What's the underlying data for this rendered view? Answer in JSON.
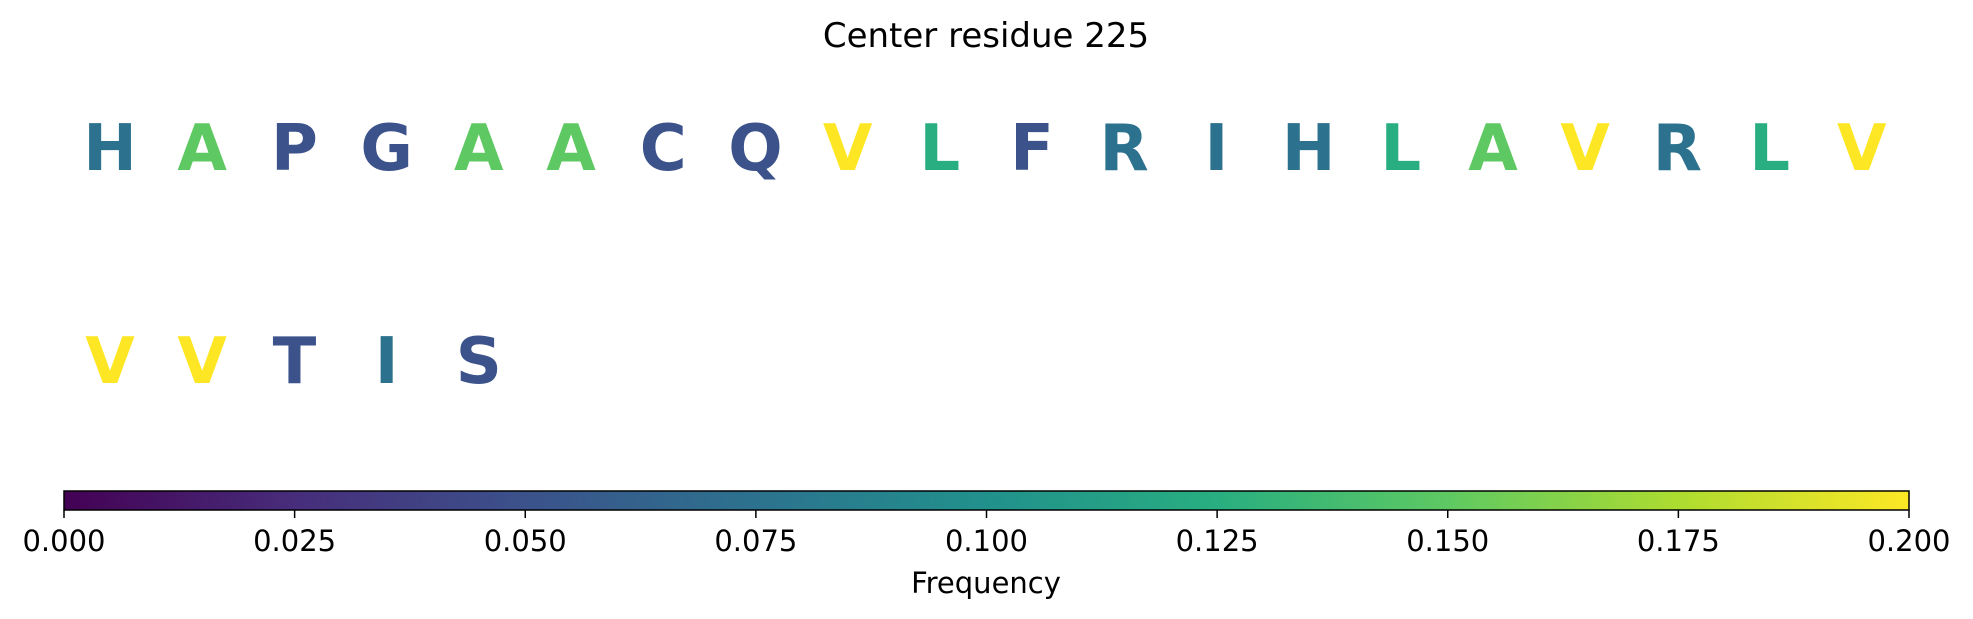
{
  "chart_data": {
    "type": "sequence-colored-letters",
    "title": "Center residue 225",
    "residues": [
      {
        "letter": "H",
        "value": 0.075
      },
      {
        "letter": "A",
        "value": 0.15
      },
      {
        "letter": "P",
        "value": 0.05
      },
      {
        "letter": "G",
        "value": 0.05
      },
      {
        "letter": "A",
        "value": 0.15
      },
      {
        "letter": "A",
        "value": 0.15
      },
      {
        "letter": "C",
        "value": 0.05
      },
      {
        "letter": "Q",
        "value": 0.05
      },
      {
        "letter": "V",
        "value": 0.2
      },
      {
        "letter": "L",
        "value": 0.125
      },
      {
        "letter": "F",
        "value": 0.05
      },
      {
        "letter": "R",
        "value": 0.075
      },
      {
        "letter": "I",
        "value": 0.075
      },
      {
        "letter": "H",
        "value": 0.075
      },
      {
        "letter": "L",
        "value": 0.125
      },
      {
        "letter": "A",
        "value": 0.15
      },
      {
        "letter": "V",
        "value": 0.2
      },
      {
        "letter": "R",
        "value": 0.075
      },
      {
        "letter": "L",
        "value": 0.125
      },
      {
        "letter": "V",
        "value": 0.2
      },
      {
        "letter": "V",
        "value": 0.2
      },
      {
        "letter": "V",
        "value": 0.2
      },
      {
        "letter": "T",
        "value": 0.05
      },
      {
        "letter": "I",
        "value": 0.075
      },
      {
        "letter": "S",
        "value": 0.05
      }
    ],
    "residues_per_row": 20,
    "colorbar": {
      "label": "Frequency",
      "colormap": "viridis",
      "range": [
        0.0,
        0.2
      ],
      "ticks": [
        "0.000",
        "0.025",
        "0.050",
        "0.075",
        "0.100",
        "0.125",
        "0.150",
        "0.175",
        "0.200"
      ],
      "orientation": "horizontal"
    }
  }
}
